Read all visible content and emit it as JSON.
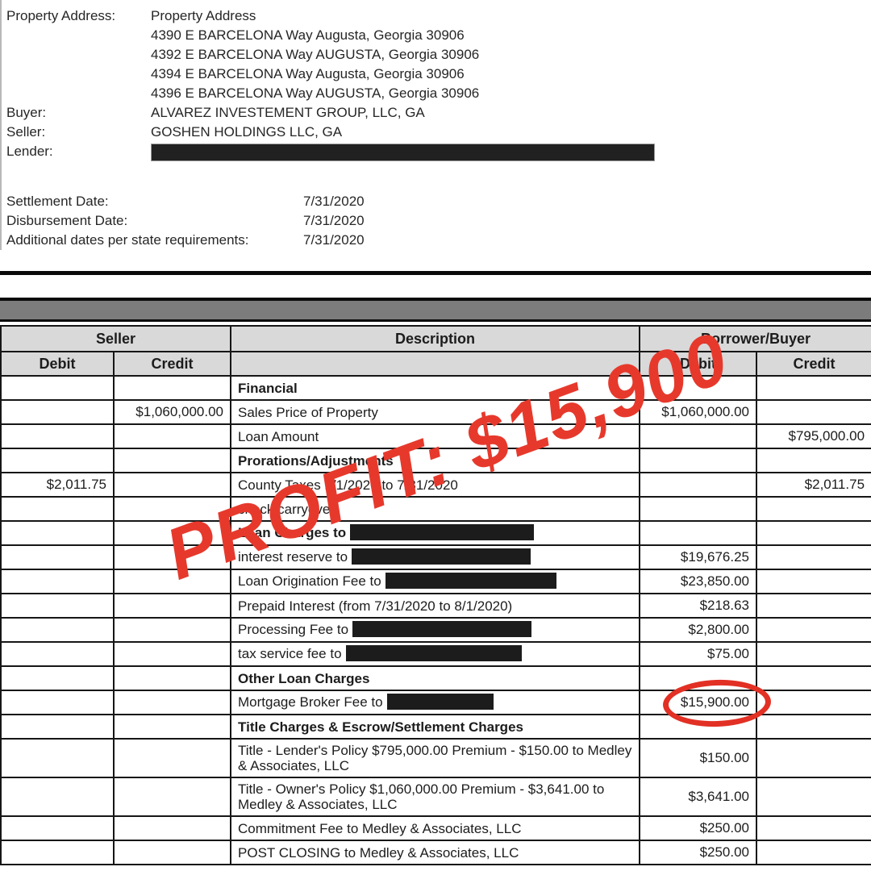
{
  "info": {
    "rows": [
      {
        "label": "Property Address:",
        "value": "Property Address"
      },
      {
        "label": "",
        "value": "4390 E BARCELONA Way Augusta, Georgia 30906"
      },
      {
        "label": "",
        "value": "4392 E BARCELONA Way AUGUSTA, Georgia 30906"
      },
      {
        "label": "",
        "value": "4394 E BARCELONA Way Augusta, Georgia 30906"
      },
      {
        "label": "",
        "value": "4396 E BARCELONA Way AUGUSTA, Georgia 30906"
      },
      {
        "label": "Buyer:",
        "value": "ALVAREZ INVESTEMENT GROUP, LLC, GA"
      },
      {
        "label": "Seller:",
        "value": "GOSHEN HOLDINGS LLC, GA"
      },
      {
        "label": "Lender:",
        "value": "",
        "redacted": true
      }
    ],
    "dates": [
      {
        "label": "Settlement Date:",
        "value": "7/31/2020"
      },
      {
        "label": "Disbursement Date:",
        "value": "7/31/2020"
      },
      {
        "label": "Additional dates per state requirements:",
        "value": "7/31/2020"
      }
    ]
  },
  "table": {
    "groups": {
      "seller": "Seller",
      "description": "Description",
      "buyer": "Borrower/Buyer"
    },
    "subheaders": {
      "seller_debit": "Debit",
      "seller_credit": "Credit",
      "desc": "",
      "buyer_debit": "Debit",
      "buyer_credit": "Credit"
    },
    "rows": [
      {
        "desc": "Financial",
        "bold": true,
        "sd": "",
        "sc": "",
        "bd": "",
        "bc": ""
      },
      {
        "desc": "Sales Price of Property",
        "sd": "",
        "sc": "$1,060,000.00",
        "bd": "$1,060,000.00",
        "bc": ""
      },
      {
        "desc": "Loan Amount",
        "sd": "",
        "sc": "",
        "bd": "",
        "bc": "$795,000.00"
      },
      {
        "desc": "Prorations/Adjustments",
        "bold": true,
        "sd": "",
        "sc": "",
        "bd": "",
        "bc": ""
      },
      {
        "desc": "County Taxes 1/1/2020 to 7/31/2020",
        "sd": "$2,011.75",
        "sc": "",
        "bd": "",
        "bc": "$2,011.75"
      },
      {
        "desc": "check/carryover",
        "sd": "",
        "sc": "",
        "bd": "",
        "bc": ""
      },
      {
        "desc": "Loan Charges to",
        "bold": true,
        "redacted": true,
        "sd": "",
        "sc": "",
        "bd": "",
        "bc": ""
      },
      {
        "desc": "interest reserve to",
        "redacted": true,
        "sd": "",
        "sc": "",
        "bd": "$19,676.25",
        "bc": ""
      },
      {
        "desc": "Loan Origination Fee to",
        "redacted": true,
        "sd": "",
        "sc": "",
        "bd": "$23,850.00",
        "bc": ""
      },
      {
        "desc": "Prepaid Interest (from 7/31/2020 to 8/1/2020)",
        "sd": "",
        "sc": "",
        "bd": "$218.63",
        "bc": ""
      },
      {
        "desc": "Processing Fee to",
        "redacted": true,
        "sd": "",
        "sc": "",
        "bd": "$2,800.00",
        "bc": ""
      },
      {
        "desc": "tax service fee to",
        "redacted": true,
        "sd": "",
        "sc": "",
        "bd": "$75.00",
        "bc": ""
      },
      {
        "desc": "Other Loan Charges",
        "bold": true,
        "sd": "",
        "sc": "",
        "bd": "",
        "bc": ""
      },
      {
        "desc": "Mortgage Broker Fee to",
        "redacted": true,
        "circled": true,
        "sd": "",
        "sc": "",
        "bd": "$15,900.00",
        "bc": ""
      },
      {
        "desc": "Title Charges & Escrow/Settlement Charges",
        "bold": true,
        "sd": "",
        "sc": "",
        "bd": "",
        "bc": ""
      },
      {
        "desc": "Title - Lender's Policy $795,000.00 Premium - $150.00 to Medley & Associates, LLC",
        "tall": true,
        "sd": "",
        "sc": "",
        "bd": "$150.00",
        "bc": ""
      },
      {
        "desc": "Title - Owner's Policy $1,060,000.00 Premium - $3,641.00 to Medley & Associates, LLC",
        "tall": true,
        "sd": "",
        "sc": "",
        "bd": "$3,641.00",
        "bc": ""
      },
      {
        "desc": "Commitment Fee to Medley & Associates, LLC",
        "sd": "",
        "sc": "",
        "bd": "$250.00",
        "bc": ""
      },
      {
        "desc": "POST CLOSING to Medley & Associates, LLC",
        "sd": "",
        "sc": "",
        "bd": "$250.00",
        "bc": ""
      }
    ]
  },
  "annotations": {
    "watermark_text": "PROFIT: $15,900",
    "watermark_color": "#e6392c",
    "circle_color": "#e23024",
    "circled_value": "$15,900.00"
  }
}
